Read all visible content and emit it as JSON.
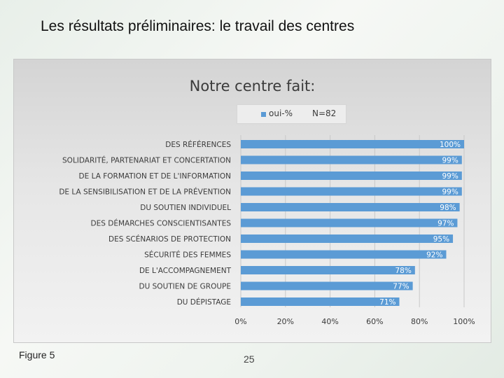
{
  "slide": {
    "title": "Les résultats préliminaires: le travail des centres",
    "figure_label": "Figure 5",
    "page_number": "25"
  },
  "colors": {
    "bar": "#5b9bd5",
    "grid": "#c8c8c8",
    "label_text": "#3b3b3b"
  },
  "chart_data": {
    "type": "bar",
    "orientation": "horizontal",
    "title": "Notre centre fait:",
    "legend": {
      "series_name": "oui-%",
      "note": "N=82",
      "placement": "top"
    },
    "categories": [
      "DES RÉFÉRENCES",
      "SOLIDARITÉ, PARTENARIAT ET CONCERTATION",
      "DE LA FORMATION ET DE L'INFORMATION",
      "DE LA SENSIBILISATION ET DE LA PRÉVENTION",
      "DU SOUTIEN INDIVIDUEL",
      "DES DÉMARCHES CONSCIENTISANTES",
      "DES SCÉNARIOS DE PROTECTION",
      "SÉCURITÉ DES FEMMES",
      "DE L'ACCOMPAGNEMENT",
      "DU SOUTIEN DE GROUPE",
      "DU DÉPISTAGE"
    ],
    "series": [
      {
        "name": "oui-%",
        "values": [
          100,
          99,
          99,
          99,
          98,
          97,
          95,
          92,
          78,
          77,
          71
        ]
      }
    ],
    "value_labels": [
      "100%",
      "99%",
      "99%",
      "99%",
      "98%",
      "97%",
      "95%",
      "92%",
      "78%",
      "77%",
      "71%"
    ],
    "xlim": [
      0,
      100
    ],
    "xticks": [
      "0%",
      "20%",
      "40%",
      "60%",
      "80%",
      "100%"
    ],
    "grid": true
  }
}
